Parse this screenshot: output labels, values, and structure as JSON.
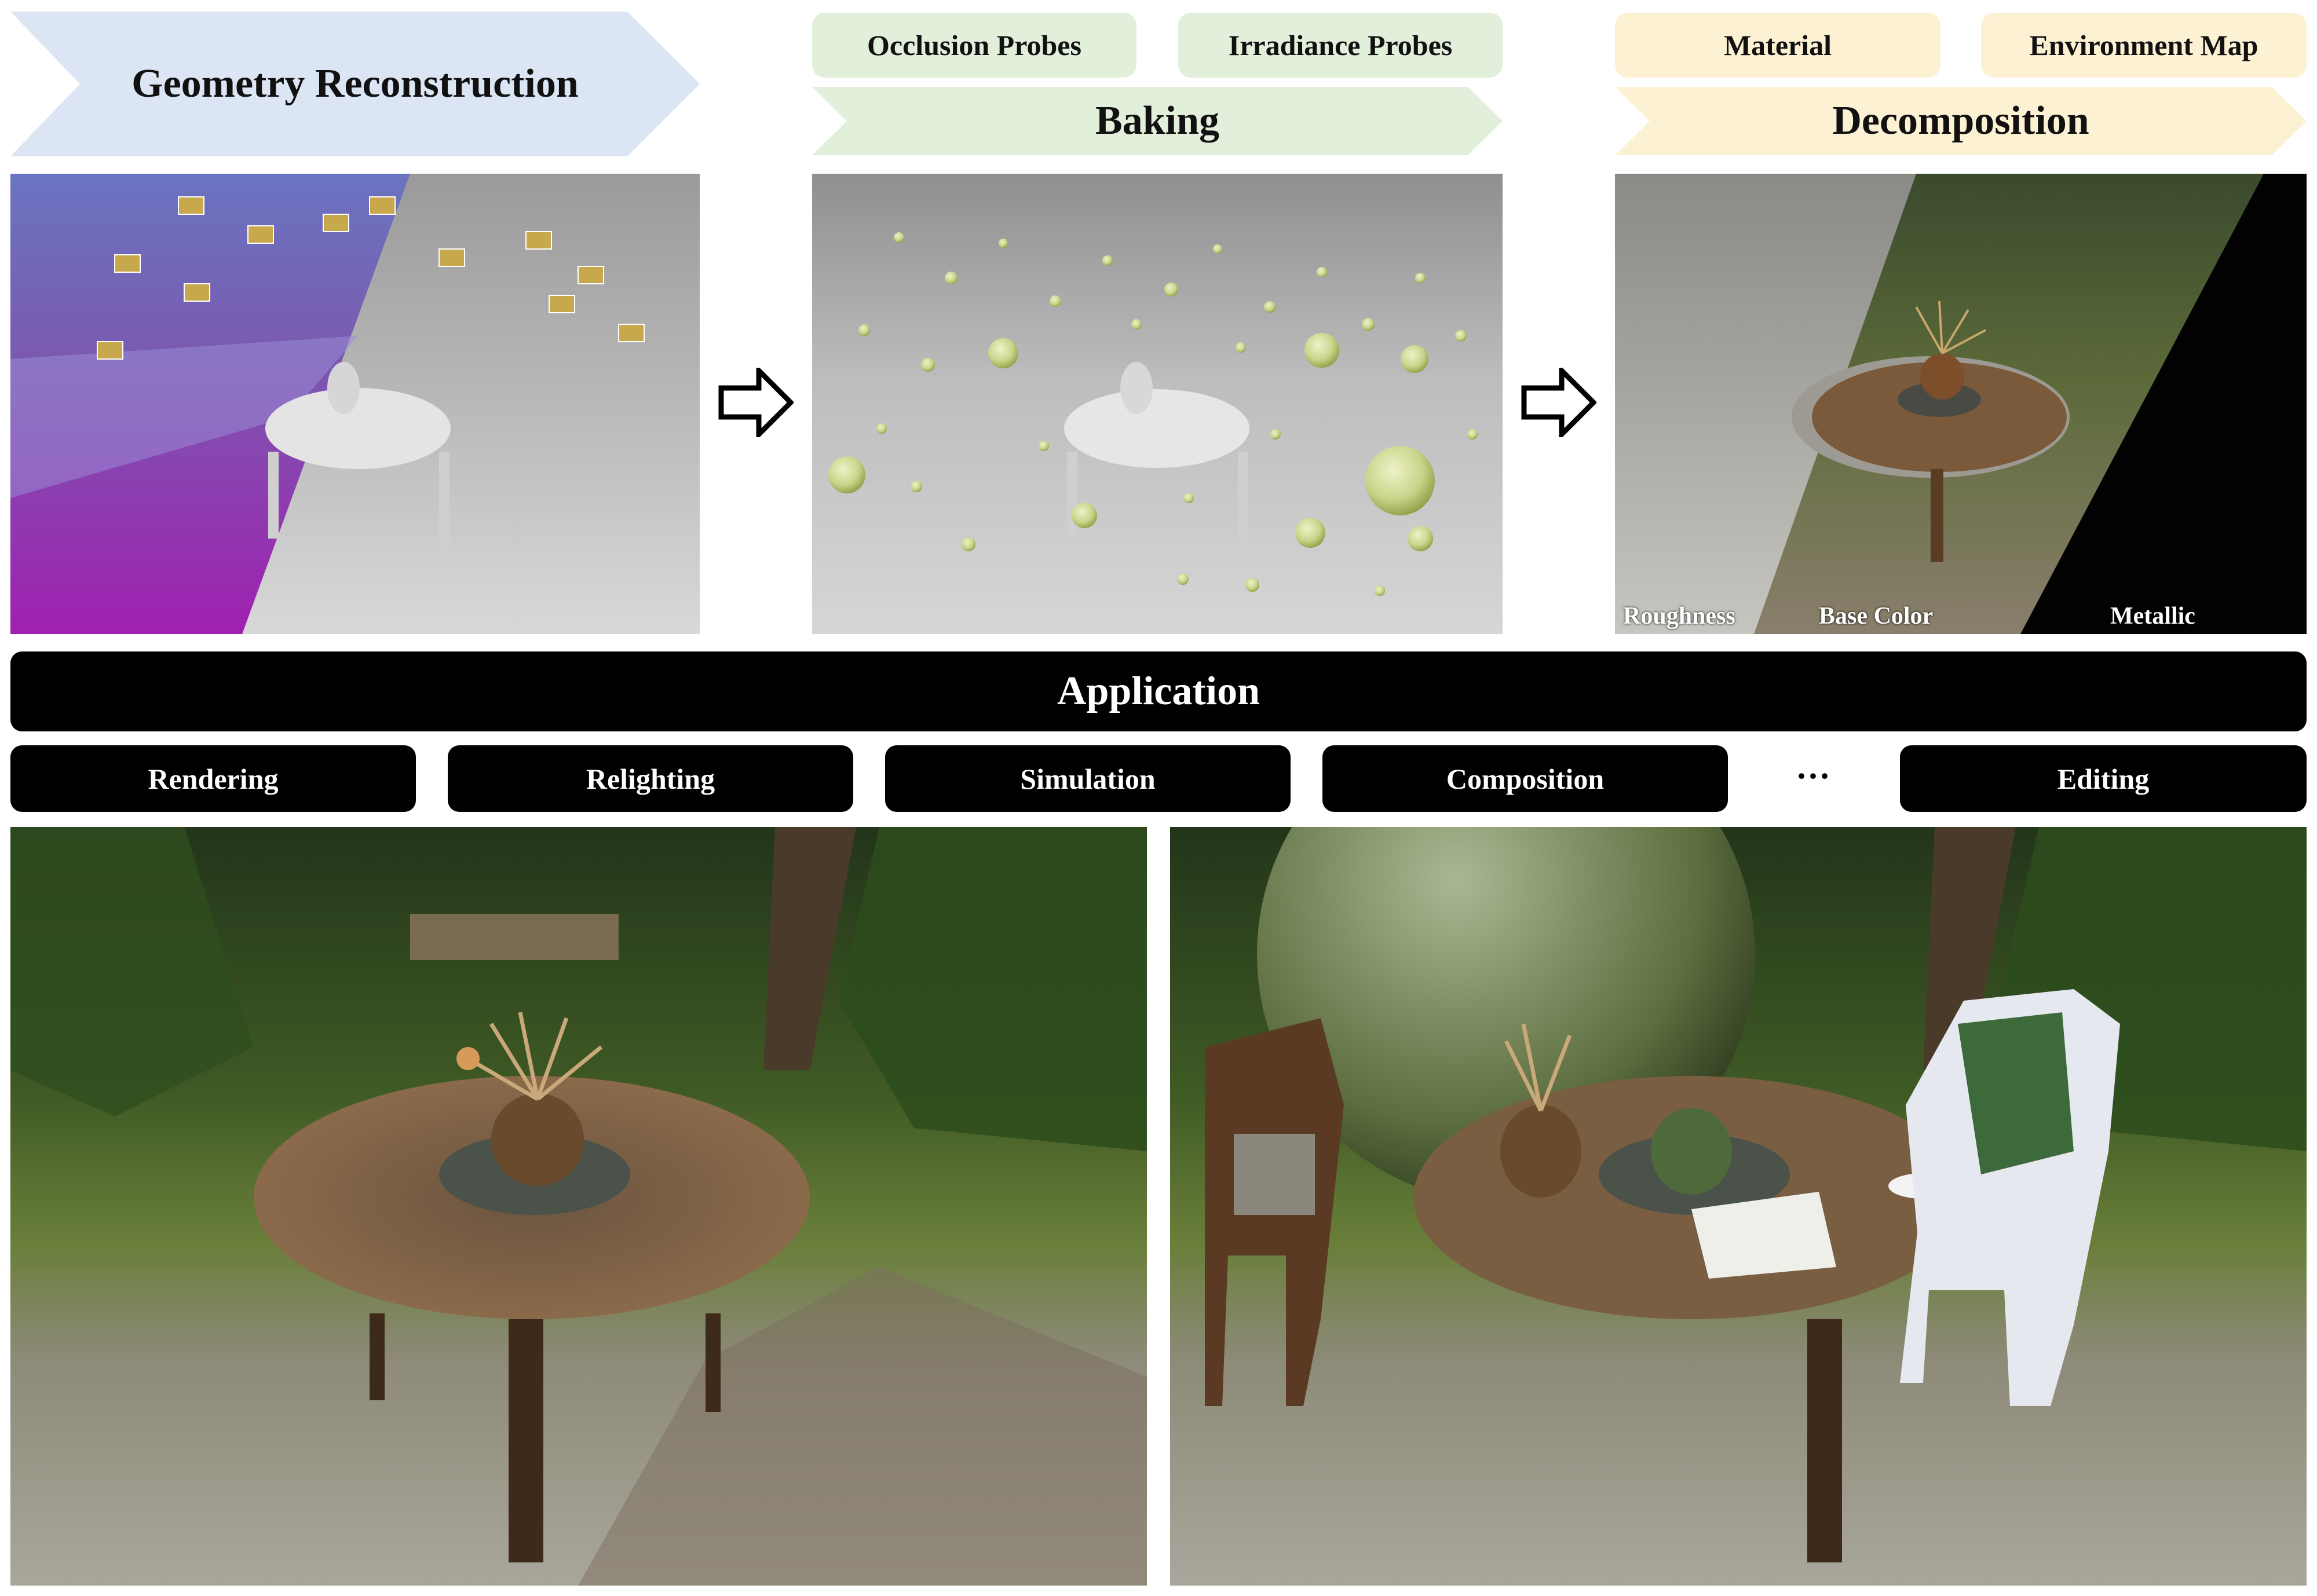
{
  "stages": {
    "geometry": {
      "label": "Geometry Reconstruction",
      "color": "#dce5f4"
    },
    "baking": {
      "label": "Baking",
      "color": "#e2efdb",
      "sub": [
        "Occlusion Probes",
        "Irradiance Probes"
      ]
    },
    "decomposition": {
      "label": "Decomposition",
      "color": "#fdf1d3",
      "sub": [
        "Material",
        "Environment Map"
      ],
      "material_labels": [
        "Roughness",
        "Base Color",
        "Metallic"
      ]
    }
  },
  "application": {
    "title": "Application",
    "items": [
      "Rendering",
      "Relighting",
      "Simulation",
      "Composition",
      "···",
      "Editing"
    ]
  },
  "icons": [
    "right-arrow-icon",
    "right-arrow-icon"
  ]
}
